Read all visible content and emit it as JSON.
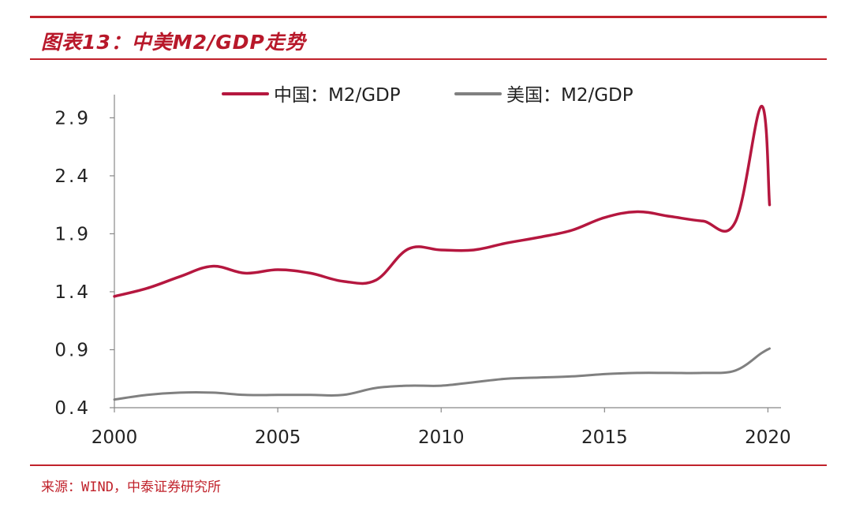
{
  "header": {
    "title": "图表13：中美M2/GDP走势"
  },
  "footer": {
    "source": "来源：WIND，中泰证券研究所"
  },
  "colors": {
    "accent": "#c0222b",
    "china": "#b5173f",
    "us": "#808080"
  },
  "chart_data": {
    "type": "line",
    "title": "图表13：中美M2/GDP走势",
    "xlabel": "",
    "ylabel": "",
    "xlim": [
      2000,
      2020.4
    ],
    "ylim": [
      0.4,
      3.1
    ],
    "x_ticks": [
      2000,
      2005,
      2010,
      2015,
      2020
    ],
    "y_ticks": [
      0.4,
      0.9,
      1.4,
      1.9,
      2.4,
      2.9
    ],
    "y_tick_labels": [
      "0.4",
      "0.9",
      "1.4",
      "1.9",
      "2.4",
      "2.9"
    ],
    "grid": false,
    "legend": "top-center",
    "series": [
      {
        "name": "中国：M2/GDP",
        "color": "#b5173f",
        "x": [
          2000,
          2001,
          2002,
          2003,
          2004,
          2005,
          2006,
          2007,
          2008,
          2009,
          2010,
          2011,
          2012,
          2013,
          2014,
          2015,
          2016,
          2017,
          2018,
          2019,
          2019.8,
          2020.05
        ],
        "y": [
          1.36,
          1.43,
          1.53,
          1.62,
          1.56,
          1.59,
          1.56,
          1.49,
          1.5,
          1.77,
          1.76,
          1.76,
          1.82,
          1.87,
          1.93,
          2.04,
          2.09,
          2.05,
          2.01,
          2.0,
          3.0,
          2.15
        ]
      },
      {
        "name": "美国：M2/GDP",
        "color": "#808080",
        "x": [
          2000,
          2001,
          2002,
          2003,
          2004,
          2005,
          2006,
          2007,
          2008,
          2009,
          2010,
          2011,
          2012,
          2013,
          2014,
          2015,
          2016,
          2017,
          2018,
          2019,
          2019.8,
          2020.05
        ],
        "y": [
          0.47,
          0.51,
          0.53,
          0.53,
          0.51,
          0.51,
          0.51,
          0.51,
          0.57,
          0.59,
          0.59,
          0.62,
          0.65,
          0.66,
          0.67,
          0.69,
          0.7,
          0.7,
          0.7,
          0.72,
          0.87,
          0.91
        ]
      }
    ]
  }
}
